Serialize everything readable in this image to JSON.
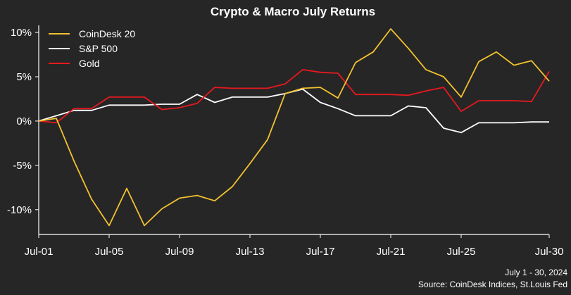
{
  "chart_data": {
    "type": "line",
    "title": "Crypto & Macro July Returns",
    "x_tick_labels": [
      "Jul-01",
      "Jul-05",
      "Jul-09",
      "Jul-13",
      "Jul-17",
      "Jul-21",
      "Jul-25",
      "Jul-30"
    ],
    "x_tick_days": [
      1,
      5,
      9,
      13,
      17,
      21,
      25,
      30
    ],
    "xlim": [
      1,
      30
    ],
    "y_tick_labels": [
      "10%",
      "5%",
      "0%",
      "-5%",
      "-10%"
    ],
    "y_tick_values": [
      10,
      5,
      0,
      -5,
      -10
    ],
    "ylim": [
      -12.8,
      10.8
    ],
    "grid": false,
    "legend_position": "top-left",
    "series": [
      {
        "name": "CoinDesk 20",
        "color": "#f2c12e",
        "x": [
          1,
          2,
          3,
          4,
          5,
          6,
          7,
          8,
          9,
          10,
          11,
          12,
          13,
          14,
          15,
          16,
          17,
          18,
          19,
          20,
          21,
          22,
          23,
          24,
          25,
          26,
          27,
          28,
          29,
          30
        ],
        "values": [
          0,
          0.3,
          -4.5,
          -8.8,
          -11.8,
          -7.6,
          -11.8,
          -9.9,
          -8.7,
          -8.4,
          -9.0,
          -7.4,
          -4.8,
          -2.1,
          3.1,
          3.7,
          3.8,
          2.6,
          6.6,
          7.8,
          10.4,
          8.2,
          5.8,
          5.0,
          2.7,
          6.7,
          7.8,
          6.3,
          6.8,
          4.5
        ]
      },
      {
        "name": "S&P 500",
        "color": "#ffffff",
        "x": [
          1,
          2,
          3,
          4,
          5,
          6,
          7,
          8,
          9,
          10,
          11,
          12,
          13,
          14,
          15,
          16,
          17,
          18,
          19,
          20,
          21,
          22,
          23,
          24,
          25,
          26,
          27,
          28,
          29,
          30
        ],
        "values": [
          0,
          0.6,
          1.2,
          1.2,
          1.8,
          1.8,
          1.8,
          1.9,
          1.9,
          3.0,
          2.1,
          2.7,
          2.7,
          2.7,
          3.1,
          3.6,
          2.1,
          1.4,
          0.6,
          0.6,
          0.6,
          1.7,
          1.5,
          -0.8,
          -1.3,
          -0.2,
          -0.2,
          -0.2,
          -0.1,
          -0.1
        ]
      },
      {
        "name": "Gold",
        "color": "#e8181f",
        "x": [
          1,
          2,
          3,
          4,
          5,
          6,
          7,
          8,
          9,
          10,
          11,
          12,
          13,
          14,
          15,
          16,
          17,
          18,
          19,
          20,
          21,
          22,
          23,
          24,
          25,
          26,
          27,
          28,
          29,
          30
        ],
        "values": [
          0,
          -0.2,
          1.4,
          1.4,
          2.7,
          2.7,
          2.7,
          1.3,
          1.5,
          2.0,
          3.8,
          3.7,
          3.7,
          3.7,
          4.2,
          5.8,
          5.5,
          5.4,
          3.0,
          3.0,
          3.0,
          2.9,
          3.4,
          3.8,
          1.1,
          2.3,
          2.3,
          2.3,
          2.2,
          5.6
        ]
      }
    ]
  },
  "footnote": {
    "date_range": "July 1 - 30, 2024",
    "source": "Source: CoinDesk Indices, St.Louis Fed"
  }
}
